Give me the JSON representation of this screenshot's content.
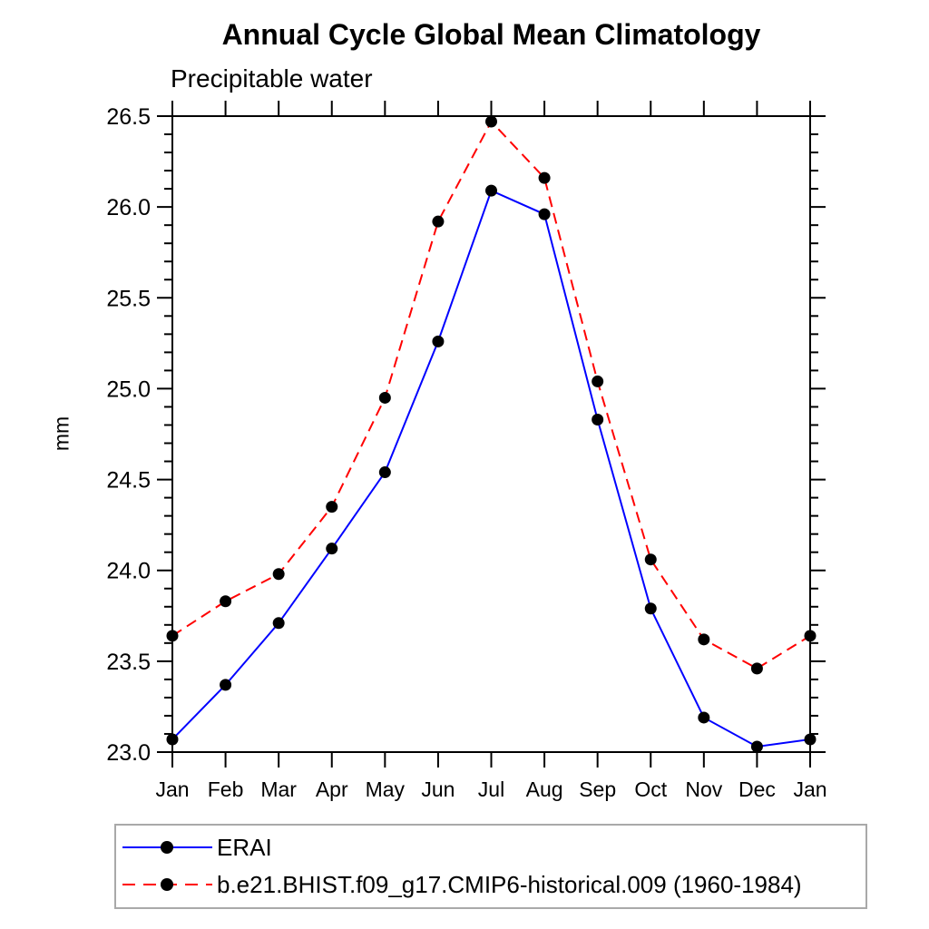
{
  "chart_data": {
    "type": "line",
    "title": "Annual Cycle Global Mean Climatology",
    "subtitle": "Precipitable water",
    "ylabel": "mm",
    "xlabel": "",
    "x_tick_labels": [
      "Jan",
      "Feb",
      "Mar",
      "Apr",
      "May",
      "Jun",
      "Jul",
      "Aug",
      "Sep",
      "Oct",
      "Nov",
      "Dec",
      "Jan"
    ],
    "ylim": [
      23.0,
      26.5
    ],
    "y_major_tick_labels": [
      "23.0",
      "23.5",
      "24.0",
      "24.5",
      "25.0",
      "25.5",
      "26.0",
      "26.5"
    ],
    "y_major_step": 0.5,
    "y_minor_step": 0.1,
    "grid": false,
    "legend_position": "bottom-left",
    "axis_color": "#000000",
    "series": [
      {
        "name": "ERAI",
        "color": "#0000ff",
        "line_style": "solid",
        "marker": "filled-circle",
        "marker_color": "#000000",
        "values": [
          23.07,
          23.37,
          23.71,
          24.12,
          24.54,
          25.26,
          26.09,
          25.96,
          24.83,
          23.79,
          23.19,
          23.03,
          23.07
        ]
      },
      {
        "name": "b.e21.BHIST.f09_g17.CMIP6-historical.009 (1960-1984)",
        "color": "#ff0000",
        "line_style": "dashed",
        "marker": "filled-circle",
        "marker_color": "#000000",
        "values": [
          23.64,
          23.83,
          23.98,
          24.35,
          24.95,
          25.92,
          26.47,
          26.16,
          25.04,
          24.06,
          23.62,
          23.46,
          23.64
        ]
      }
    ]
  }
}
